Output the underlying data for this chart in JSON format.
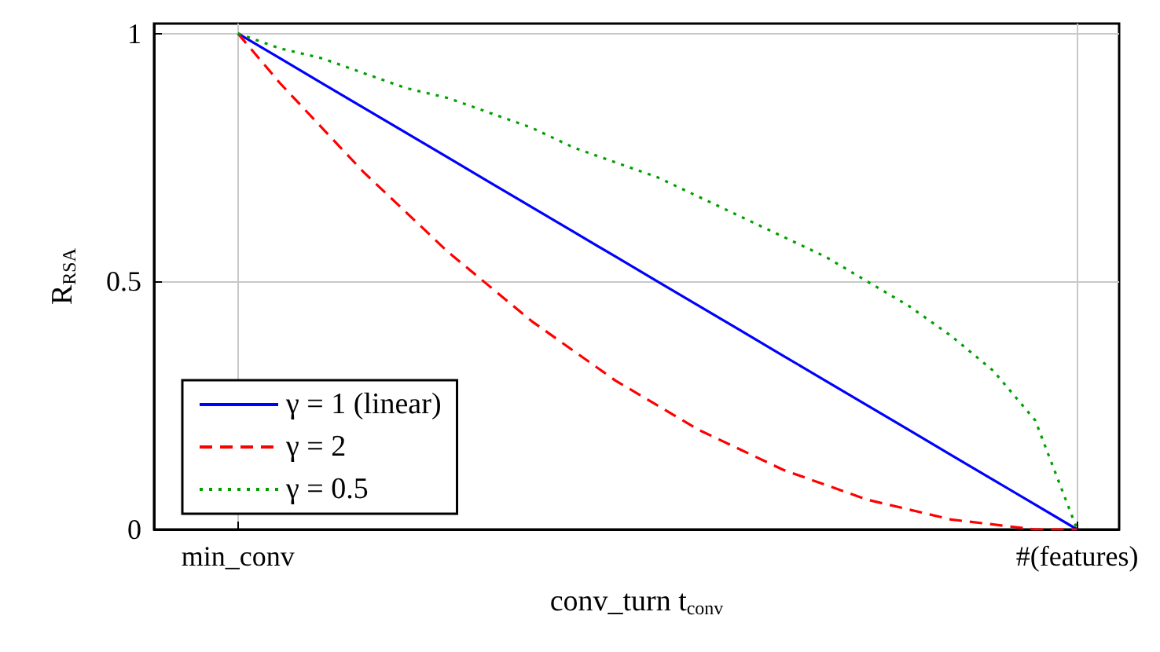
{
  "chart_data": {
    "type": "line",
    "xlabel": "conv_turn t$_{conv}$",
    "ylabel": "R$_{RSA}$",
    "categories": [
      null,
      null,
      "min_conv",
      null,
      null,
      null,
      null,
      null,
      null,
      null,
      null,
      null,
      null,
      null,
      null,
      null,
      null,
      null,
      null,
      null,
      null,
      null,
      "#(features)",
      null
    ],
    "ylim": [
      0,
      1.02
    ],
    "yticks": [
      0,
      0.5,
      1
    ],
    "grid": true,
    "legend": "bottom left",
    "series": [
      {
        "name": "γ = 1 (linear)",
        "color": "#0000ff",
        "line_style": "solid",
        "values": [
          null,
          null,
          1,
          0.95,
          0.9,
          0.85,
          0.8,
          0.75,
          0.7,
          0.65,
          0.6,
          0.55,
          0.5,
          0.45,
          0.4,
          0.35,
          0.3,
          0.25,
          0.2,
          0.15,
          0.1,
          0.05,
          0,
          null
        ]
      },
      {
        "name": "γ = 2",
        "color": "#ff0000",
        "line_style": "dashed",
        "values": [
          null,
          null,
          1,
          0.9,
          0.81,
          0.72,
          0.64,
          0.56,
          0.49,
          0.42,
          0.36,
          0.3,
          0.25,
          0.2,
          0.16,
          0.12,
          0.09,
          0.06,
          0.04,
          0.02,
          0.01,
          0,
          0,
          null
        ]
      },
      {
        "name": "γ = 0.5",
        "color": "#00a000",
        "line_style": "dotted",
        "values": [
          null,
          null,
          1,
          0.97,
          0.95,
          0.92,
          0.89,
          0.87,
          0.84,
          0.81,
          0.77,
          0.74,
          0.71,
          0.67,
          0.63,
          0.59,
          0.55,
          0.5,
          0.45,
          0.39,
          0.32,
          0.22,
          0,
          null
        ]
      }
    ]
  }
}
